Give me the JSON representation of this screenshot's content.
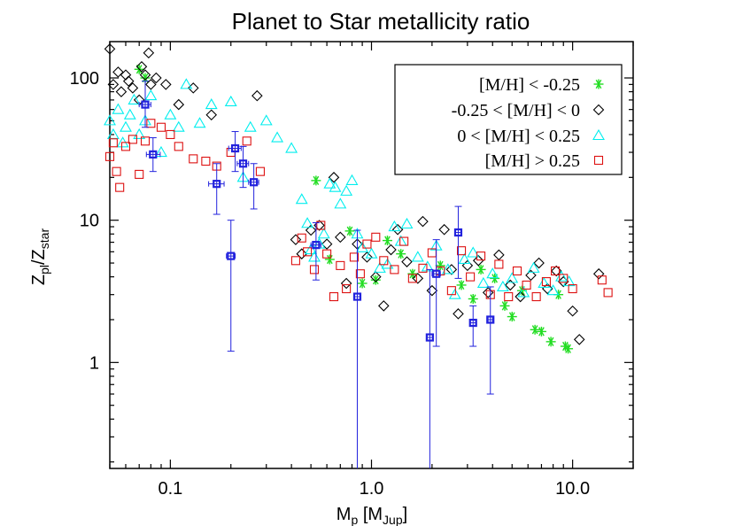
{
  "chart_data": {
    "type": "scatter",
    "title": "Planet to Star metallicity ratio",
    "xlabel": {
      "main": "M",
      "sub": "p",
      "bracket_open": " [M",
      "bracket_sub": "Jup",
      "bracket_close": "]"
    },
    "ylabel": {
      "main": "Z",
      "sub": "pl",
      "slash": "/Z",
      "sub2": "star"
    },
    "x_scale": "log",
    "y_scale": "log",
    "xlim": [
      0.05,
      20
    ],
    "ylim": [
      0.18,
      180
    ],
    "x_ticks": [
      {
        "value": 0.1,
        "label": "0.1"
      },
      {
        "value": 1.0,
        "label": "1.0"
      },
      {
        "value": 10.0,
        "label": "10.0"
      }
    ],
    "y_ticks": [
      {
        "value": 1,
        "label": "1"
      },
      {
        "value": 10,
        "label": "10"
      },
      {
        "value": 100,
        "label": "100"
      }
    ],
    "legend_position": "top-right",
    "series": [
      {
        "name": "[M/H] < -0.25",
        "marker": "asterisk",
        "color": "#22dd22",
        "points": [
          [
            0.07,
            115
          ],
          [
            0.075,
            100
          ],
          [
            0.53,
            19
          ],
          [
            0.62,
            5.3
          ],
          [
            0.78,
            8.4
          ],
          [
            0.9,
            3.6
          ],
          [
            1.05,
            3.8
          ],
          [
            1.2,
            7.2
          ],
          [
            1.4,
            5.8
          ],
          [
            1.6,
            4.2
          ],
          [
            2.2,
            4.8
          ],
          [
            2.8,
            3.5
          ],
          [
            3.2,
            2.8
          ],
          [
            3.5,
            4.5
          ],
          [
            4.1,
            3.9
          ],
          [
            4.6,
            2.5
          ],
          [
            5.0,
            2.1
          ],
          [
            5.6,
            3.2
          ],
          [
            6.5,
            1.7
          ],
          [
            7.0,
            1.65
          ],
          [
            7.8,
            1.4
          ],
          [
            8.5,
            3.0
          ],
          [
            9.2,
            1.3
          ],
          [
            9.5,
            1.25
          ]
        ]
      },
      {
        "name": "-0.25 < [M/H] < 0",
        "marker": "diamond",
        "color": "#000000",
        "points": [
          [
            0.05,
            160
          ],
          [
            0.052,
            90
          ],
          [
            0.055,
            110
          ],
          [
            0.057,
            80
          ],
          [
            0.06,
            105
          ],
          [
            0.062,
            95
          ],
          [
            0.065,
            85
          ],
          [
            0.07,
            70
          ],
          [
            0.072,
            120
          ],
          [
            0.075,
            105
          ],
          [
            0.078,
            150
          ],
          [
            0.08,
            90
          ],
          [
            0.085,
            100
          ],
          [
            0.095,
            90
          ],
          [
            0.11,
            65
          ],
          [
            0.13,
            85
          ],
          [
            0.16,
            55
          ],
          [
            0.27,
            75
          ],
          [
            0.42,
            7.3
          ],
          [
            0.45,
            5.8
          ],
          [
            0.5,
            8.5
          ],
          [
            0.55,
            9.2
          ],
          [
            0.6,
            6.8
          ],
          [
            0.65,
            20
          ],
          [
            0.7,
            7.6
          ],
          [
            0.75,
            3.6
          ],
          [
            0.85,
            6.8
          ],
          [
            0.95,
            5.5
          ],
          [
            1.05,
            4.0
          ],
          [
            1.15,
            2.5
          ],
          [
            1.25,
            6.2
          ],
          [
            1.35,
            8.6
          ],
          [
            1.5,
            5.1
          ],
          [
            1.7,
            3.9
          ],
          [
            1.8,
            9.8
          ],
          [
            2.0,
            3.2
          ],
          [
            2.3,
            8.6
          ],
          [
            2.5,
            4.5
          ],
          [
            2.7,
            2.2
          ],
          [
            3.0,
            4.8
          ],
          [
            3.4,
            5.2
          ],
          [
            3.8,
            3.1
          ],
          [
            4.3,
            5.7
          ],
          [
            4.9,
            3.5
          ],
          [
            5.5,
            2.9
          ],
          [
            6.2,
            4.1
          ],
          [
            6.8,
            5.0
          ],
          [
            7.5,
            3.3
          ],
          [
            8.3,
            4.4
          ],
          [
            9.0,
            3.7
          ],
          [
            10.0,
            2.3
          ],
          [
            10.8,
            1.45
          ],
          [
            13.5,
            4.2
          ]
        ]
      },
      {
        "name": "0 < [M/H] < 0.25",
        "marker": "triangle",
        "color": "#00eeee",
        "points": [
          [
            0.05,
            50
          ],
          [
            0.052,
            40
          ],
          [
            0.055,
            60
          ],
          [
            0.058,
            35
          ],
          [
            0.06,
            45
          ],
          [
            0.063,
            55
          ],
          [
            0.066,
            70
          ],
          [
            0.07,
            40
          ],
          [
            0.075,
            50
          ],
          [
            0.08,
            75
          ],
          [
            0.09,
            30
          ],
          [
            0.1,
            55
          ],
          [
            0.11,
            45
          ],
          [
            0.12,
            90
          ],
          [
            0.14,
            48
          ],
          [
            0.16,
            65
          ],
          [
            0.2,
            68
          ],
          [
            0.23,
            20
          ],
          [
            0.25,
            45
          ],
          [
            0.3,
            50
          ],
          [
            0.34,
            38
          ],
          [
            0.4,
            32
          ],
          [
            0.45,
            14
          ],
          [
            0.48,
            9.5
          ],
          [
            0.5,
            6.2
          ],
          [
            0.52,
            5.5
          ],
          [
            0.55,
            6.8
          ],
          [
            0.58,
            8.0
          ],
          [
            0.62,
            18
          ],
          [
            0.66,
            17
          ],
          [
            0.7,
            13
          ],
          [
            0.75,
            16
          ],
          [
            0.8,
            19
          ],
          [
            0.85,
            8.0
          ],
          [
            0.9,
            6.4
          ],
          [
            1.0,
            5.8
          ],
          [
            1.1,
            4.6
          ],
          [
            1.2,
            4.9
          ],
          [
            1.3,
            9.0
          ],
          [
            1.4,
            7.1
          ],
          [
            1.5,
            9.4
          ],
          [
            1.7,
            5.5
          ],
          [
            1.9,
            4.7
          ],
          [
            2.1,
            6.6
          ],
          [
            2.4,
            4.5
          ],
          [
            2.6,
            3.0
          ],
          [
            2.9,
            5.3
          ],
          [
            3.2,
            5.9
          ],
          [
            3.6,
            3.6
          ],
          [
            4.0,
            4.2
          ],
          [
            4.5,
            3.4
          ],
          [
            5.0,
            3.9
          ],
          [
            5.7,
            3.1
          ],
          [
            6.4,
            4.6
          ],
          [
            7.2,
            3.6
          ],
          [
            8.0,
            3.2
          ],
          [
            8.8,
            4.0
          ],
          [
            9.6,
            3.7
          ]
        ]
      },
      {
        "name": "[M/H] > 0.25",
        "marker": "square",
        "color": "#dd1111",
        "points": [
          [
            0.05,
            28
          ],
          [
            0.052,
            35
          ],
          [
            0.054,
            22
          ],
          [
            0.056,
            17
          ],
          [
            0.06,
            33
          ],
          [
            0.065,
            37
          ],
          [
            0.07,
            21
          ],
          [
            0.075,
            36
          ],
          [
            0.08,
            48
          ],
          [
            0.09,
            45
          ],
          [
            0.1,
            40
          ],
          [
            0.11,
            33
          ],
          [
            0.13,
            27
          ],
          [
            0.15,
            26
          ],
          [
            0.17,
            24
          ],
          [
            0.2,
            30
          ],
          [
            0.24,
            36
          ],
          [
            0.28,
            22
          ],
          [
            0.42,
            5.2
          ],
          [
            0.45,
            7.5
          ],
          [
            0.48,
            6.0
          ],
          [
            0.52,
            4.5
          ],
          [
            0.56,
            9.2
          ],
          [
            0.6,
            5.8
          ],
          [
            0.65,
            2.9
          ],
          [
            0.7,
            4.8
          ],
          [
            0.75,
            3.3
          ],
          [
            0.82,
            5.5
          ],
          [
            0.88,
            4.2
          ],
          [
            0.95,
            6.8
          ],
          [
            1.05,
            7.6
          ],
          [
            1.15,
            5.2
          ],
          [
            1.3,
            4.5
          ],
          [
            1.45,
            7.1
          ],
          [
            1.6,
            3.9
          ],
          [
            1.8,
            4.6
          ],
          [
            2.0,
            5.9
          ],
          [
            2.2,
            4.4
          ],
          [
            2.5,
            3.2
          ],
          [
            2.8,
            6.1
          ],
          [
            3.1,
            4.0
          ],
          [
            3.5,
            5.6
          ],
          [
            3.9,
            3.0
          ],
          [
            4.3,
            4.9
          ],
          [
            4.8,
            2.9
          ],
          [
            5.3,
            4.4
          ],
          [
            5.9,
            3.5
          ],
          [
            6.6,
            2.9
          ],
          [
            7.4,
            3.7
          ],
          [
            8.2,
            4.4
          ],
          [
            9.0,
            3.9
          ],
          [
            10.0,
            3.3
          ],
          [
            14.0,
            3.8
          ],
          [
            15.0,
            3.1
          ]
        ]
      },
      {
        "marker": "errorbar-square",
        "color": "#2222dd",
        "points": [
          {
            "x": 0.075,
            "y": 65,
            "y_low": 45,
            "y_high": 95,
            "x_low": 0.07,
            "x_high": 0.08
          },
          {
            "x": 0.082,
            "y": 29,
            "y_low": 22,
            "y_high": 38,
            "x_low": 0.076,
            "x_high": 0.089
          },
          {
            "x": 0.17,
            "y": 18,
            "y_low": 11,
            "y_high": 25,
            "x_low": 0.155,
            "x_high": 0.185
          },
          {
            "x": 0.2,
            "y": 5.6,
            "y_low": 1.2,
            "y_high": 10,
            "x_low": 0.19,
            "x_high": 0.21
          },
          {
            "x": 0.21,
            "y": 32,
            "y_low": 22,
            "y_high": 42,
            "x_low": 0.195,
            "x_high": 0.225
          },
          {
            "x": 0.23,
            "y": 25,
            "y_low": 17,
            "y_high": 33,
            "x_low": 0.215,
            "x_high": 0.245
          },
          {
            "x": 0.26,
            "y": 18.5,
            "y_low": 12,
            "y_high": 25,
            "x_low": 0.245,
            "x_high": 0.275
          },
          {
            "x": 0.53,
            "y": 6.7,
            "y_low": 3.8,
            "y_high": 9.6,
            "x_low": 0.5,
            "x_high": 0.56
          },
          {
            "x": 0.85,
            "y": 2.9,
            "y_low": 0.18,
            "y_high": 8.5,
            "x_low": 0.82,
            "x_high": 0.88
          },
          {
            "x": 1.95,
            "y": 1.5,
            "y_low": 0.18,
            "y_high": 4.5,
            "x_low": 1.88,
            "x_high": 2.02
          },
          {
            "x": 2.1,
            "y": 4.2,
            "y_low": 1.3,
            "y_high": 7.3,
            "x_low": 2.0,
            "x_high": 2.2
          },
          {
            "x": 2.7,
            "y": 8.2,
            "y_low": 3.9,
            "y_high": 12.5,
            "x_low": 2.6,
            "x_high": 2.8
          },
          {
            "x": 3.2,
            "y": 1.9,
            "y_low": 1.3,
            "y_high": 2.5,
            "x_low": 3.1,
            "x_high": 3.3
          },
          {
            "x": 3.9,
            "y": 2.0,
            "y_low": 0.6,
            "y_high": 3.4,
            "x_low": 3.8,
            "x_high": 4.0
          }
        ]
      }
    ],
    "colors": {
      "axis": "#000000",
      "background": "#ffffff"
    }
  }
}
